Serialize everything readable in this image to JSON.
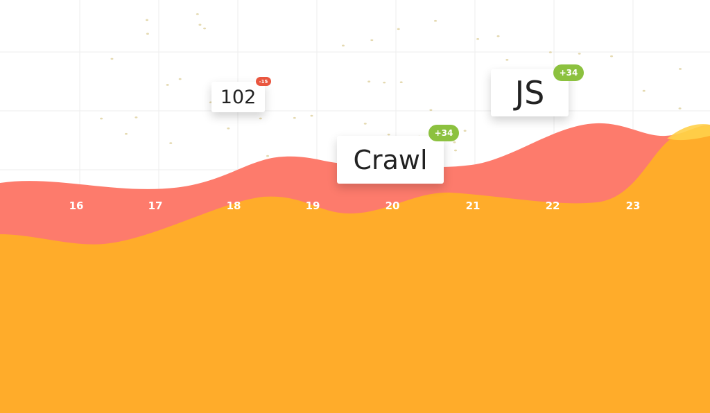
{
  "axis": {
    "labels": [
      "16",
      "17",
      "18",
      "19",
      "20",
      "21",
      "22",
      "23"
    ]
  },
  "cards": [
    {
      "label": "102",
      "badge": "-15"
    },
    {
      "label": "Crawl",
      "badge": "+34"
    },
    {
      "label": "JS",
      "badge": "+34"
    }
  ]
}
